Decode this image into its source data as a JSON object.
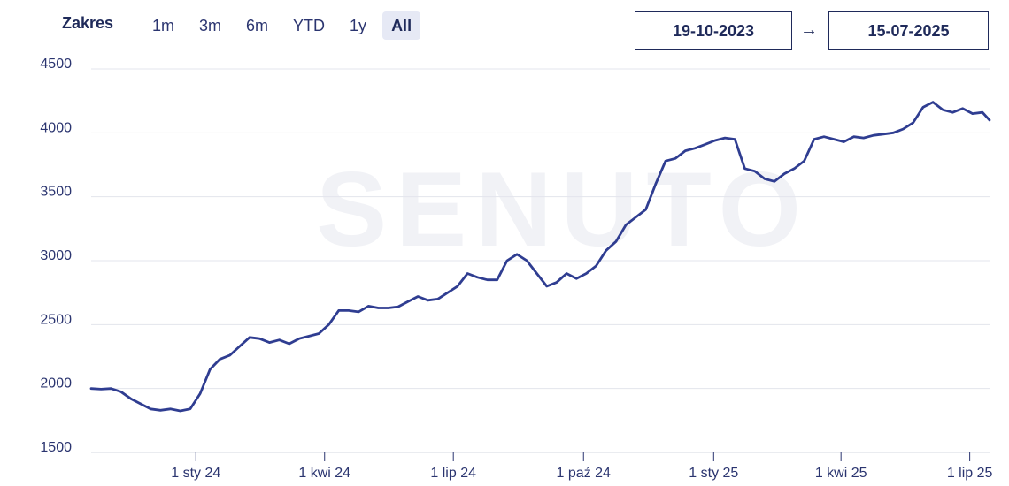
{
  "toolbar": {
    "range_label": "Zakres",
    "ranges": [
      "1m",
      "3m",
      "6m",
      "YTD",
      "1y",
      "All"
    ],
    "active_range": "All",
    "date_from": "19-10-2023",
    "date_to": "15-07-2025",
    "arrow": "→"
  },
  "watermark": "SENUTO",
  "colors": {
    "line": "#2f3d91",
    "grid": "#e3e5ec",
    "accent_bg": "#e6e9f5"
  },
  "chart_data": {
    "type": "line",
    "title": "",
    "xlabel": "",
    "ylabel": "",
    "ylim": [
      1500,
      4500
    ],
    "yticks": [
      4500,
      4000,
      3500,
      3000,
      2500,
      2000,
      1500
    ],
    "x_range": [
      "2023-10-19",
      "2025-07-15"
    ],
    "xticks": [
      {
        "date": "2024-01-01",
        "label": "1 sty 24"
      },
      {
        "date": "2024-04-01",
        "label": "1 kwi 24"
      },
      {
        "date": "2024-07-01",
        "label": "1 lip 24"
      },
      {
        "date": "2024-10-01",
        "label": "1 paź 24"
      },
      {
        "date": "2025-01-01",
        "label": "1 sty 25"
      },
      {
        "date": "2025-04-01",
        "label": "1 kwi 25"
      },
      {
        "date": "2025-07-01",
        "label": "1 lip 25"
      }
    ],
    "grid": true,
    "series": [
      {
        "points": [
          [
            "2023-10-19",
            2000
          ],
          [
            "2023-10-26",
            1995
          ],
          [
            "2023-11-02",
            2000
          ],
          [
            "2023-11-09",
            1975
          ],
          [
            "2023-11-16",
            1920
          ],
          [
            "2023-11-23",
            1880
          ],
          [
            "2023-11-30",
            1840
          ],
          [
            "2023-12-07",
            1830
          ],
          [
            "2023-12-14",
            1840
          ],
          [
            "2023-12-21",
            1825
          ],
          [
            "2023-12-28",
            1840
          ],
          [
            "2024-01-04",
            1960
          ],
          [
            "2024-01-11",
            2150
          ],
          [
            "2024-01-18",
            2230
          ],
          [
            "2024-01-25",
            2260
          ],
          [
            "2024-02-01",
            2330
          ],
          [
            "2024-02-08",
            2400
          ],
          [
            "2024-02-15",
            2390
          ],
          [
            "2024-02-22",
            2360
          ],
          [
            "2024-02-29",
            2380
          ],
          [
            "2024-03-07",
            2350
          ],
          [
            "2024-03-14",
            2390
          ],
          [
            "2024-03-21",
            2410
          ],
          [
            "2024-03-28",
            2430
          ],
          [
            "2024-04-04",
            2500
          ],
          [
            "2024-04-11",
            2610
          ],
          [
            "2024-04-18",
            2610
          ],
          [
            "2024-04-25",
            2600
          ],
          [
            "2024-05-02",
            2645
          ],
          [
            "2024-05-09",
            2630
          ],
          [
            "2024-05-16",
            2630
          ],
          [
            "2024-05-23",
            2640
          ],
          [
            "2024-05-30",
            2680
          ],
          [
            "2024-06-06",
            2720
          ],
          [
            "2024-06-13",
            2690
          ],
          [
            "2024-06-20",
            2700
          ],
          [
            "2024-06-27",
            2750
          ],
          [
            "2024-07-04",
            2800
          ],
          [
            "2024-07-11",
            2900
          ],
          [
            "2024-07-18",
            2870
          ],
          [
            "2024-07-25",
            2850
          ],
          [
            "2024-08-01",
            2850
          ],
          [
            "2024-08-08",
            3000
          ],
          [
            "2024-08-15",
            3050
          ],
          [
            "2024-08-22",
            3000
          ],
          [
            "2024-08-29",
            2900
          ],
          [
            "2024-09-05",
            2800
          ],
          [
            "2024-09-12",
            2830
          ],
          [
            "2024-09-19",
            2900
          ],
          [
            "2024-09-26",
            2860
          ],
          [
            "2024-10-03",
            2900
          ],
          [
            "2024-10-10",
            2960
          ],
          [
            "2024-10-17",
            3080
          ],
          [
            "2024-10-24",
            3150
          ],
          [
            "2024-10-31",
            3280
          ],
          [
            "2024-11-07",
            3340
          ],
          [
            "2024-11-14",
            3400
          ],
          [
            "2024-11-21",
            3600
          ],
          [
            "2024-11-28",
            3780
          ],
          [
            "2024-12-05",
            3800
          ],
          [
            "2024-12-12",
            3860
          ],
          [
            "2024-12-19",
            3880
          ],
          [
            "2024-12-26",
            3910
          ],
          [
            "2025-01-02",
            3940
          ],
          [
            "2025-01-09",
            3960
          ],
          [
            "2025-01-16",
            3950
          ],
          [
            "2025-01-23",
            3720
          ],
          [
            "2025-01-30",
            3700
          ],
          [
            "2025-02-06",
            3640
          ],
          [
            "2025-02-13",
            3620
          ],
          [
            "2025-02-20",
            3680
          ],
          [
            "2025-02-27",
            3720
          ],
          [
            "2025-03-06",
            3780
          ],
          [
            "2025-03-13",
            3950
          ],
          [
            "2025-03-20",
            3970
          ],
          [
            "2025-03-27",
            3950
          ],
          [
            "2025-04-03",
            3930
          ],
          [
            "2025-04-10",
            3970
          ],
          [
            "2025-04-17",
            3960
          ],
          [
            "2025-04-24",
            3980
          ],
          [
            "2025-05-01",
            3990
          ],
          [
            "2025-05-08",
            4000
          ],
          [
            "2025-05-15",
            4030
          ],
          [
            "2025-05-22",
            4080
          ],
          [
            "2025-05-29",
            4200
          ],
          [
            "2025-06-05",
            4240
          ],
          [
            "2025-06-12",
            4180
          ],
          [
            "2025-06-19",
            4160
          ],
          [
            "2025-06-26",
            4190
          ],
          [
            "2025-07-03",
            4150
          ],
          [
            "2025-07-10",
            4160
          ],
          [
            "2025-07-15",
            4100
          ]
        ]
      }
    ]
  }
}
